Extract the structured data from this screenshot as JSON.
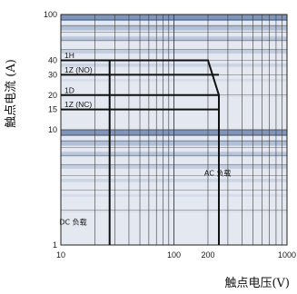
{
  "chart_data": {
    "type": "line",
    "xlabel": "触点电压(V)",
    "ylabel": "触点电流 (A)",
    "x_scale": "log",
    "y_scale": "log",
    "xlim": [
      10,
      1000
    ],
    "ylim": [
      1,
      100
    ],
    "x_ticks": [
      10,
      100,
      200,
      1000
    ],
    "y_ticks": [
      1,
      10,
      15,
      20,
      30,
      40,
      100
    ],
    "grid": true,
    "series": [
      {
        "name": "1H",
        "x": [
          10,
          200,
          250,
          250
        ],
        "y": [
          40,
          40,
          20,
          1
        ]
      },
      {
        "name": "1Z (NO)",
        "x": [
          10,
          250
        ],
        "y": [
          30,
          30
        ]
      },
      {
        "name": "1D",
        "x": [
          10,
          250
        ],
        "y": [
          20,
          20
        ]
      },
      {
        "name": "1Z (NC)",
        "x": [
          10,
          250
        ],
        "y": [
          15,
          15
        ]
      },
      {
        "name": "DC 负载",
        "x": [
          27,
          27
        ],
        "y": [
          1,
          40
        ]
      },
      {
        "name": "AC 负载",
        "x": [
          250,
          250
        ],
        "y": [
          1,
          20
        ]
      }
    ],
    "annotations": [
      {
        "text": "AC 负载",
        "x": 320,
        "y": 4
      },
      {
        "text": "DC 负载",
        "x": 17,
        "y": 1.5
      }
    ]
  },
  "colors": {
    "plot_background": "#e4e8f0",
    "band_fill": "#a6b6d2",
    "band_dark": "#7a90b8",
    "grid_line": "#3a3a3a",
    "curve": "#111111"
  }
}
